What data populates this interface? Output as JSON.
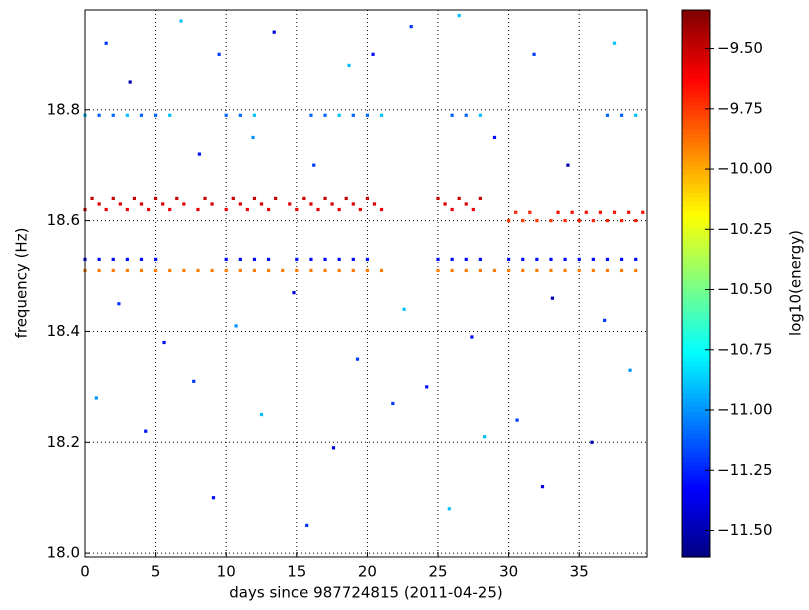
{
  "chart_data": {
    "type": "scatter",
    "xlabel": "days since 987724815 (2011-04-25)",
    "ylabel": "frequency (Hz)",
    "colorbar_label": "log10(energy)",
    "colormap": "jet",
    "grid": true,
    "xlim": [
      0,
      39.8
    ],
    "ylim": [
      17.993,
      18.98
    ],
    "xticks": [
      0,
      5,
      10,
      15,
      20,
      25,
      30,
      35
    ],
    "yticks": [
      {
        "value": 18.0,
        "label": "18.0"
      },
      18.2,
      18.4,
      18.6,
      18.8
    ],
    "clim": [
      -11.61,
      -9.34
    ],
    "cticks": [
      {
        "value": -9.5,
        "label": "−9.50"
      },
      {
        "value": -9.75,
        "label": "−9.75"
      },
      {
        "value": -10.0,
        "label": "−10.00"
      },
      {
        "value": -10.25,
        "label": "−10.25"
      },
      {
        "value": -10.5,
        "label": "−10.50"
      },
      {
        "value": -10.75,
        "label": "−10.75"
      },
      {
        "value": -11.0,
        "label": "−11.00"
      },
      {
        "value": -11.25,
        "label": "−11.25"
      },
      {
        "value": -11.5,
        "label": "−11.50"
      }
    ],
    "series": [
      {
        "x": [
          0,
          1,
          2,
          3,
          4,
          5,
          6,
          7,
          8,
          9,
          10,
          11,
          12,
          13,
          14,
          15,
          16,
          17,
          18,
          19,
          20,
          21,
          25,
          26,
          27,
          28,
          29,
          30,
          31,
          32,
          33,
          34,
          35,
          36,
          37,
          38,
          39
        ],
        "y": [
          18.51,
          18.51,
          18.51,
          18.51,
          18.51,
          18.51,
          18.51,
          18.51,
          18.51,
          18.51,
          18.51,
          18.51,
          18.51,
          18.51,
          18.51,
          18.51,
          18.51,
          18.51,
          18.51,
          18.51,
          18.51,
          18.51,
          18.51,
          18.51,
          18.51,
          18.51,
          18.51,
          18.51,
          18.51,
          18.51,
          18.51,
          18.51,
          18.51,
          18.51,
          18.51,
          18.51,
          18.51
        ],
        "c": [
          -9.9,
          -9.9,
          -9.9,
          -9.9,
          -9.9,
          -9.9,
          -9.9,
          -9.9,
          -9.9,
          -9.9,
          -9.9,
          -9.9,
          -9.9,
          -9.9,
          -9.9,
          -9.9,
          -9.9,
          -9.9,
          -9.9,
          -9.9,
          -9.9,
          -9.9,
          -9.9,
          -9.9,
          -9.9,
          -9.9,
          -9.9,
          -9.9,
          -9.9,
          -9.9,
          -9.9,
          -9.9,
          -9.9,
          -9.9,
          -9.9,
          -9.9,
          -9.9
        ]
      },
      {
        "x": [
          0,
          1,
          2,
          3,
          4,
          5,
          10,
          11,
          12,
          13,
          15,
          16,
          17,
          18,
          19,
          20,
          25,
          26,
          27,
          28,
          30,
          31,
          32,
          33,
          34,
          35,
          36,
          37,
          38,
          39
        ],
        "y": [
          18.53,
          18.53,
          18.53,
          18.53,
          18.53,
          18.53,
          18.53,
          18.53,
          18.53,
          18.53,
          18.53,
          18.53,
          18.53,
          18.53,
          18.53,
          18.53,
          18.53,
          18.53,
          18.53,
          18.53,
          18.53,
          18.53,
          18.53,
          18.53,
          18.53,
          18.53,
          18.53,
          18.53,
          18.53,
          18.53
        ],
        "c": [
          -11.3,
          -11.3,
          -11.3,
          -11.3,
          -11.3,
          -11.3,
          -11.3,
          -11.3,
          -11.3,
          -11.3,
          -11.3,
          -11.3,
          -11.3,
          -11.3,
          -11.3,
          -11.3,
          -11.3,
          -11.3,
          -11.3,
          -11.3,
          -11.3,
          -11.3,
          -11.3,
          -11.3,
          -11.3,
          -11.3,
          -11.3,
          -11.3,
          -11.3,
          -11.3
        ]
      },
      {
        "x": [
          0,
          0.5,
          1,
          1.5,
          2,
          2.5,
          3,
          3.5,
          4,
          4.5,
          5,
          5.5,
          6,
          6.5,
          7,
          8,
          8.5,
          9,
          10,
          10.5,
          11,
          11.5,
          12,
          12.5,
          13,
          13.5,
          14.5,
          15,
          15.5,
          16,
          16.5,
          17,
          17.5,
          18,
          18.5,
          19,
          19.5,
          20,
          20.5,
          21,
          25,
          25.5,
          26,
          26.5,
          27,
          27.5,
          28
        ],
        "y": [
          18.62,
          18.64,
          18.63,
          18.62,
          18.64,
          18.63,
          18.62,
          18.64,
          18.63,
          18.62,
          18.64,
          18.63,
          18.62,
          18.64,
          18.63,
          18.62,
          18.64,
          18.63,
          18.62,
          18.64,
          18.63,
          18.62,
          18.64,
          18.63,
          18.62,
          18.64,
          18.63,
          18.62,
          18.64,
          18.63,
          18.62,
          18.64,
          18.63,
          18.62,
          18.64,
          18.63,
          18.62,
          18.64,
          18.63,
          18.62,
          18.64,
          18.63,
          18.62,
          18.64,
          18.63,
          18.62,
          18.64
        ],
        "c": [
          -9.55,
          -9.5,
          -9.55,
          -9.6,
          -9.5,
          -9.55,
          -9.6,
          -9.5,
          -9.55,
          -9.6,
          -9.5,
          -9.55,
          -9.6,
          -9.5,
          -9.55,
          -9.6,
          -9.5,
          -9.55,
          -9.6,
          -9.5,
          -9.55,
          -9.6,
          -9.5,
          -9.55,
          -9.6,
          -9.5,
          -9.55,
          -9.6,
          -9.5,
          -9.55,
          -9.6,
          -9.5,
          -9.55,
          -9.6,
          -9.5,
          -9.55,
          -9.6,
          -9.5,
          -9.55,
          -9.6,
          -9.5,
          -9.55,
          -9.6,
          -9.5,
          -9.55,
          -9.6,
          -9.5
        ]
      },
      {
        "x": [
          30,
          30.5,
          31,
          31.5,
          32,
          33,
          33.5,
          34,
          34.5,
          35,
          35.5,
          36,
          36.5,
          37,
          37.5,
          38,
          38.5,
          39,
          39.5
        ],
        "y": [
          18.6,
          18.615,
          18.6,
          18.615,
          18.6,
          18.6,
          18.615,
          18.6,
          18.615,
          18.6,
          18.615,
          18.6,
          18.615,
          18.6,
          18.615,
          18.6,
          18.615,
          18.6,
          18.615
        ],
        "c": [
          -9.75,
          -9.7,
          -9.75,
          -9.7,
          -9.75,
          -9.75,
          -9.65,
          -9.7,
          -9.65,
          -9.7,
          -9.65,
          -9.7,
          -9.65,
          -9.7,
          -9.65,
          -9.7,
          -9.65,
          -9.7,
          -9.65
        ]
      },
      {
        "x": [
          0,
          1,
          2,
          3,
          4,
          5,
          6,
          10,
          11,
          12,
          16,
          17,
          18,
          19,
          20,
          21,
          26,
          27,
          28,
          37,
          38,
          39
        ],
        "y": [
          18.79,
          18.79,
          18.79,
          18.79,
          18.79,
          18.79,
          18.79,
          18.79,
          18.79,
          18.79,
          18.79,
          18.79,
          18.79,
          18.79,
          18.79,
          18.79,
          18.79,
          18.79,
          18.79,
          18.79,
          18.79,
          18.79
        ],
        "c": [
          -10.9,
          -11.1,
          -11.1,
          -10.9,
          -11.1,
          -11.1,
          -10.9,
          -11.1,
          -11.1,
          -10.9,
          -11.1,
          -11.1,
          -10.9,
          -11.1,
          -11.1,
          -10.9,
          -11.1,
          -11.1,
          -10.9,
          -11.1,
          -11.1,
          -10.9
        ]
      },
      {
        "x": [
          1.5,
          3.2,
          6.8,
          8.1,
          9.5,
          11.9,
          13.4,
          16.2,
          18.7,
          20.4,
          23.1,
          26.5,
          29.0,
          31.8,
          34.2,
          37.5,
          2.4,
          5.6,
          10.7,
          14.8,
          19.3,
          22.6,
          27.4,
          33.1,
          36.8,
          0.8,
          4.3,
          7.7,
          12.5,
          17.6,
          21.8,
          24.2,
          28.3,
          30.6,
          35.9,
          38.6,
          9.1,
          15.7,
          25.8,
          32.4
        ],
        "y": [
          18.92,
          18.85,
          18.96,
          18.72,
          18.9,
          18.75,
          18.94,
          18.7,
          18.88,
          18.9,
          18.95,
          18.97,
          18.75,
          18.9,
          18.7,
          18.92,
          18.45,
          18.38,
          18.41,
          18.47,
          18.35,
          18.44,
          18.39,
          18.46,
          18.42,
          18.28,
          18.22,
          18.31,
          18.25,
          18.19,
          18.27,
          18.3,
          18.21,
          18.24,
          18.2,
          18.33,
          18.1,
          18.05,
          18.08,
          18.12
        ],
        "c": [
          -11.2,
          -11.5,
          -10.9,
          -11.3,
          -11.2,
          -11.0,
          -11.4,
          -11.2,
          -10.9,
          -11.3,
          -11.2,
          -10.9,
          -11.3,
          -11.2,
          -11.5,
          -10.9,
          -11.2,
          -11.3,
          -11.0,
          -11.4,
          -11.2,
          -10.9,
          -11.3,
          -11.5,
          -11.2,
          -11.0,
          -11.3,
          -11.2,
          -10.9,
          -11.4,
          -11.2,
          -11.3,
          -10.9,
          -11.2,
          -11.5,
          -11.0,
          -11.3,
          -11.2,
          -10.9,
          -11.4
        ]
      }
    ]
  }
}
